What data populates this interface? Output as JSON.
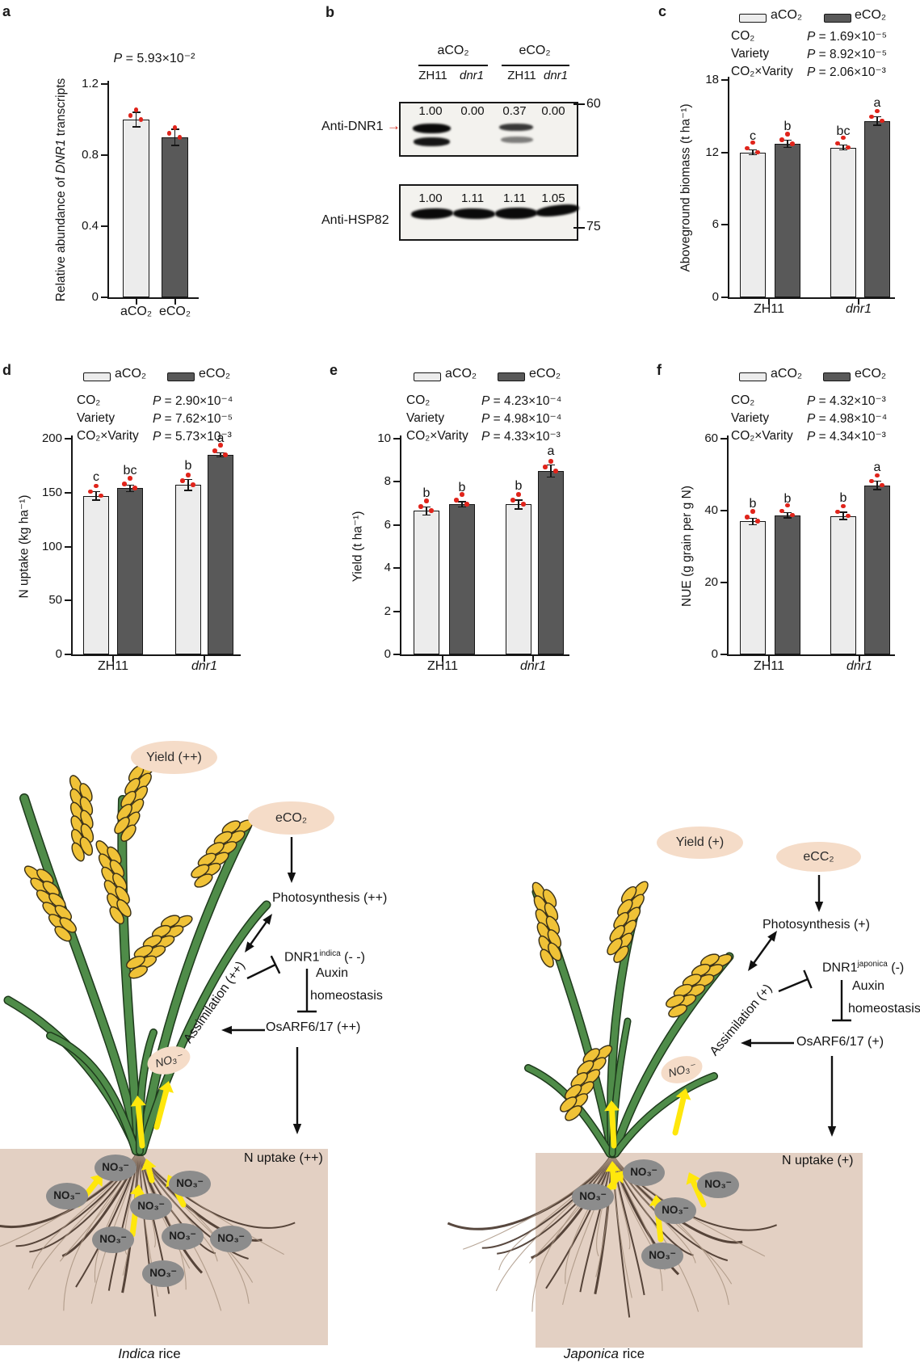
{
  "colors": {
    "bar_light": "#ececec",
    "bar_dark": "#595959",
    "dot_red": "#e0241b",
    "axis": "#161616",
    "soil": "#e3d0c3",
    "oval_pink": "#f5dcc8",
    "oval_gray": "#8c8c8c",
    "leaf_green": "#4f8c49",
    "leaf_outline": "#1e3a1c",
    "grain_yellow": "#f0c237",
    "grain_outline": "#3a3118",
    "root_main": "#46342a",
    "root_thin": "#a5907d",
    "arrow_yellow": "#ffe70c",
    "blot_arrow_red": "#cf2e20"
  },
  "chart_data": [
    {
      "id": "a",
      "type": "bar",
      "panel_label": "a",
      "title_p": "5.93×10⁻²",
      "ylabel": {
        "prefix": "Relative abundance of ",
        "italic": "DNR1",
        "suffix": " transcripts"
      },
      "ymax": 1.2,
      "yticks": [
        {
          "v": 0,
          "t": "0"
        },
        {
          "v": 0.4,
          "t": "0.4"
        },
        {
          "v": 0.8,
          "t": "0.8"
        },
        {
          "v": 1.2,
          "t": "1.2"
        }
      ],
      "groups": [
        {
          "label": "aCO₂",
          "italic": false
        },
        {
          "label": "eCO₂",
          "italic": false
        }
      ],
      "values": [
        [
          1.0
        ],
        [
          0.9
        ]
      ],
      "errors": [
        [
          0.04
        ],
        [
          0.045
        ]
      ],
      "letters": [
        [
          null
        ],
        [
          null
        ]
      ],
      "grid": false,
      "legend_position": "none"
    },
    {
      "id": "c",
      "type": "bar",
      "panel_label": "c",
      "ylabel": {
        "prefix": "Aboveground biomass (t ha⁻¹)",
        "italic": "",
        "suffix": ""
      },
      "ymax": 18,
      "yticks": [
        {
          "v": 0,
          "t": "0"
        },
        {
          "v": 6,
          "t": "6"
        },
        {
          "v": 12,
          "t": "12"
        },
        {
          "v": 18,
          "t": "18"
        }
      ],
      "groups": [
        {
          "label": "ZH11",
          "italic": false
        },
        {
          "label": "dnr1",
          "italic": true
        }
      ],
      "series": [
        "aCO₂",
        "eCO₂"
      ],
      "values": [
        [
          12.0,
          12.7
        ],
        [
          12.4,
          14.6
        ]
      ],
      "errors": [
        [
          0.2,
          0.3
        ],
        [
          0.2,
          0.35
        ]
      ],
      "letters": [
        [
          "c",
          "b"
        ],
        [
          "bc",
          "a"
        ]
      ],
      "stats": [
        {
          "factor": "CO₂",
          "p": "1.69×10⁻⁵"
        },
        {
          "factor": "Variety",
          "p": "8.92×10⁻⁵"
        },
        {
          "factor": "CO₂×Varity",
          "p": "2.06×10⁻³"
        }
      ],
      "grid": false,
      "legend_position": "top"
    },
    {
      "id": "d",
      "type": "bar",
      "panel_label": "d",
      "ylabel": {
        "prefix": "N uptake (kg ha⁻¹)",
        "italic": "",
        "suffix": ""
      },
      "ymax": 200,
      "yticks": [
        {
          "v": 0,
          "t": "0"
        },
        {
          "v": 50,
          "t": "50"
        },
        {
          "v": 100,
          "t": "100"
        },
        {
          "v": 150,
          "t": "150"
        },
        {
          "v": 200,
          "t": "200"
        }
      ],
      "groups": [
        {
          "label": "ZH11",
          "italic": false
        },
        {
          "label": "dnr1",
          "italic": true
        }
      ],
      "series": [
        "aCO₂",
        "eCO₂"
      ],
      "values": [
        [
          147,
          154
        ],
        [
          157,
          185
        ]
      ],
      "errors": [
        [
          4,
          3
        ],
        [
          5,
          2
        ]
      ],
      "letters": [
        [
          "c",
          "bc"
        ],
        [
          "b",
          "a"
        ]
      ],
      "stats": [
        {
          "factor": "CO₂",
          "p": "2.90×10⁻⁴"
        },
        {
          "factor": "Variety",
          "p": "7.62×10⁻⁵"
        },
        {
          "factor": "CO₂×Varity",
          "p": "5.73×10⁻³"
        }
      ],
      "grid": false,
      "legend_position": "top"
    },
    {
      "id": "e",
      "type": "bar",
      "panel_label": "e",
      "ylabel": {
        "prefix": "Yield (t ha⁻¹)",
        "italic": "",
        "suffix": ""
      },
      "ymax": 10,
      "yticks": [
        {
          "v": 0,
          "t": "0"
        },
        {
          "v": 2,
          "t": "2"
        },
        {
          "v": 4,
          "t": "4"
        },
        {
          "v": 6,
          "t": "6"
        },
        {
          "v": 8,
          "t": "8"
        },
        {
          "v": 10,
          "t": "10"
        }
      ],
      "groups": [
        {
          "label": "ZH11",
          "italic": false
        },
        {
          "label": "dnr1",
          "italic": true
        }
      ],
      "series": [
        "aCO₂",
        "eCO₂"
      ],
      "values": [
        [
          6.65,
          6.95
        ],
        [
          6.95,
          8.5
        ]
      ],
      "errors": [
        [
          0.18,
          0.12
        ],
        [
          0.2,
          0.28
        ]
      ],
      "letters": [
        [
          "b",
          "b"
        ],
        [
          "b",
          "a"
        ]
      ],
      "stats": [
        {
          "factor": "CO₂",
          "p": "4.23×10⁻⁴"
        },
        {
          "factor": "Variety",
          "p": "4.98×10⁻⁴"
        },
        {
          "factor": "CO₂×Varity",
          "p": "4.33×10⁻³"
        }
      ],
      "grid": false,
      "legend_position": "top"
    },
    {
      "id": "f",
      "type": "bar",
      "panel_label": "f",
      "ylabel": {
        "prefix": "NUE (g grain per g N)",
        "italic": "",
        "suffix": ""
      },
      "ymax": 60,
      "yticks": [
        {
          "v": 0,
          "t": "0"
        },
        {
          "v": 20,
          "t": "20"
        },
        {
          "v": 40,
          "t": "40"
        },
        {
          "v": 60,
          "t": "60"
        }
      ],
      "groups": [
        {
          "label": "ZH11",
          "italic": false
        },
        {
          "label": "dnr1",
          "italic": true
        }
      ],
      "series": [
        "aCO₂",
        "eCO₂"
      ],
      "values": [
        [
          37,
          38.7
        ],
        [
          38.5,
          47
        ]
      ],
      "errors": [
        [
          0.9,
          0.7
        ],
        [
          1.0,
          1.2
        ]
      ],
      "letters": [
        [
          "b",
          "b"
        ],
        [
          "b",
          "a"
        ]
      ],
      "stats": [
        {
          "factor": "CO₂",
          "p": "4.32×10⁻³"
        },
        {
          "factor": "Variety",
          "p": "4.98×10⁻⁴"
        },
        {
          "factor": "CO₂×Varity",
          "p": "4.34×10⁻³"
        }
      ],
      "grid": false,
      "legend_position": "top"
    }
  ],
  "p_symbol": "P",
  "blot": {
    "panel_label": "b",
    "group1": "aCO₂",
    "group2": "eCO₂",
    "lane1": "ZH11",
    "lane2": "dnr1",
    "lane3": "ZH11",
    "lane4": "dnr1",
    "blot1": {
      "name": "Anti-DNR1",
      "arrow": "→",
      "values": [
        "1.00",
        "0.00",
        "0.37",
        "0.00"
      ],
      "marker": "60"
    },
    "blot2": {
      "name": "Anti-HSP82",
      "values": [
        "1.00",
        "1.11",
        "1.11",
        "1.05"
      ],
      "marker": "75"
    }
  },
  "diagram": {
    "no3": "NO₃⁻",
    "left": {
      "yield": "Yield (++)",
      "eco2": "eCO₂",
      "photosynthesis": "Photosynthesis (++)",
      "dnr1_name": "DNR1",
      "dnr1_sup": "indica",
      "dnr1_suffix": " (- -)",
      "auxin": "Auxin",
      "homeostasis": "homeostasis",
      "osarf": "OsARF6/17 (++)",
      "assimilation": "Assimilation (++)",
      "n_uptake": "N uptake (++)",
      "caption_italic": "Indica",
      "caption_rest": " rice"
    },
    "right": {
      "yield": "Yield (+)",
      "eco2": "eCC₂",
      "photosynthesis": "Photosynthesis (+)",
      "dnr1_name": "DNR1",
      "dnr1_sup": "japonica",
      "dnr1_suffix": " (-)",
      "auxin": "Auxin",
      "homeostasis": "homeostasis",
      "osarf": "OsARF6/17 (+)",
      "assimilation": "Assimilation (+)",
      "n_uptake": "N uptake (+)",
      "caption_italic": "Japonica",
      "caption_rest": " rice"
    }
  }
}
